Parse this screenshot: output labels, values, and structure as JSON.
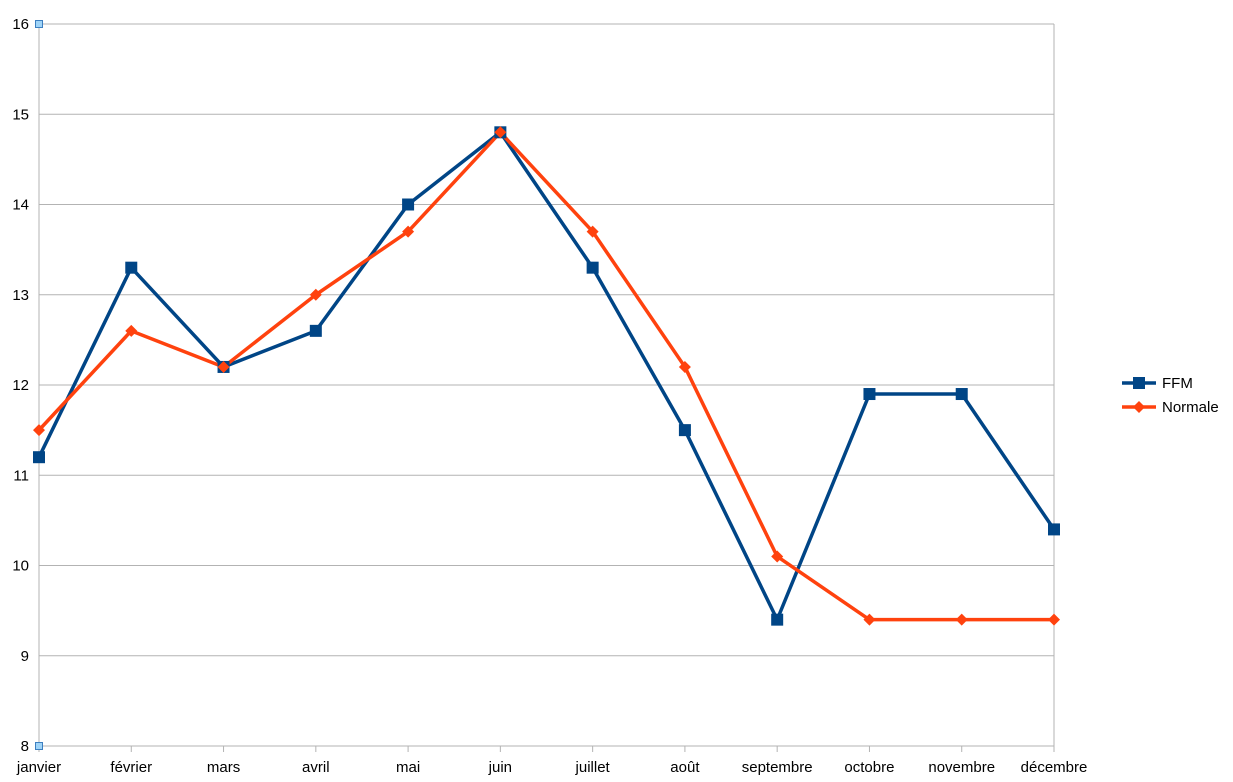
{
  "chart_data": {
    "type": "line",
    "title": "",
    "xlabel": "",
    "ylabel": "",
    "categories": [
      "janvier",
      "février",
      "mars",
      "avril",
      "mai",
      "juin",
      "juillet",
      "août",
      "septembre",
      "octobre",
      "novembre",
      "décembre"
    ],
    "ylim": [
      8,
      16
    ],
    "yticks": [
      8,
      9,
      10,
      11,
      12,
      13,
      14,
      15,
      16
    ],
    "grid": true,
    "legend_position": "right",
    "series": [
      {
        "name": "FFM",
        "values": [
          11.2,
          13.3,
          12.2,
          12.6,
          14.0,
          14.8,
          13.3,
          11.5,
          9.4,
          11.9,
          11.9,
          10.4
        ],
        "color": "#004586",
        "marker": "square"
      },
      {
        "name": "Normale",
        "values": [
          11.5,
          12.6,
          12.2,
          13.0,
          13.7,
          14.8,
          13.7,
          12.2,
          10.1,
          9.4,
          9.4,
          9.4
        ],
        "color": "#ff420e",
        "marker": "diamond"
      }
    ]
  }
}
